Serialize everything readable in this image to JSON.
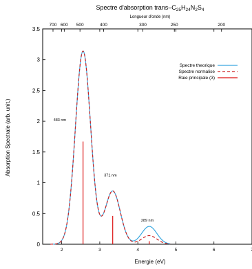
{
  "chart_data": {
    "type": "line",
    "title": {
      "prefix": "Spectre d'absorption  trans–C",
      "parts": [
        {
          "text": "25",
          "sub": true
        },
        {
          "text": "H",
          "sub": false
        },
        {
          "text": "24",
          "sub": true
        },
        {
          "text": "N",
          "sub": false
        },
        {
          "text": "2",
          "sub": true
        },
        {
          "text": "S",
          "sub": false
        },
        {
          "text": "4",
          "sub": true
        }
      ]
    },
    "xlabel": "Energie (eV)",
    "ylabel": "Absorption Spectrale (arb. unit.)",
    "x2label": "Longueur d'onde (nm)",
    "xlim": [
      1.5,
      7
    ],
    "ylim": [
      0,
      3.5
    ],
    "x_ticks": [
      2,
      3,
      4,
      5,
      6,
      7
    ],
    "x_tick_labels": [
      "2",
      "3",
      "4",
      "5",
      "6",
      "7"
    ],
    "y_ticks": [
      0,
      0.5,
      1,
      1.5,
      2,
      2.5,
      3,
      3.5
    ],
    "y_tick_labels": [
      "0",
      "0.5",
      "1",
      "1.5",
      "2",
      "2.5",
      "3",
      "3.5"
    ],
    "x2_ticks_nm": [
      700,
      600,
      500,
      400,
      300,
      250,
      200
    ],
    "x2_tick_labels": [
      "700",
      "600",
      "500",
      "400",
      "300",
      "250",
      "200"
    ],
    "legend_position": "top-right",
    "series": [
      {
        "name": "Spectre theorique",
        "color": "#3aa8e0",
        "style": "solid",
        "peaks": [
          {
            "center": 2.56,
            "height": 3.14,
            "sigma": 0.2
          },
          {
            "center": 3.34,
            "height": 0.865,
            "sigma": 0.2
          },
          {
            "center": 4.3,
            "height": 0.29,
            "sigma": 0.2
          }
        ]
      },
      {
        "name": "Spectre normalise",
        "color": "#cc2222",
        "style": "dashed",
        "peaks": [
          {
            "center": 2.56,
            "height": 3.14,
            "sigma": 0.2
          },
          {
            "center": 3.34,
            "height": 0.865,
            "sigma": 0.2
          },
          {
            "center": 4.3,
            "height": 0.14,
            "sigma": 0.2
          }
        ]
      }
    ],
    "sticks": {
      "name": "Raie principale (3)",
      "color": "#dd1111",
      "lines": [
        {
          "x": 2.56,
          "y": 1.67
        },
        {
          "x": 3.34,
          "y": 0.46
        },
        {
          "x": 4.3,
          "y": 0.05
        }
      ]
    },
    "annotations": [
      {
        "text": "483 nm",
        "x": 1.95,
        "y": 2.0
      },
      {
        "text": "371 nm",
        "x": 3.28,
        "y": 1.1
      },
      {
        "text": "289 nm",
        "x": 4.25,
        "y": 0.37
      }
    ]
  }
}
